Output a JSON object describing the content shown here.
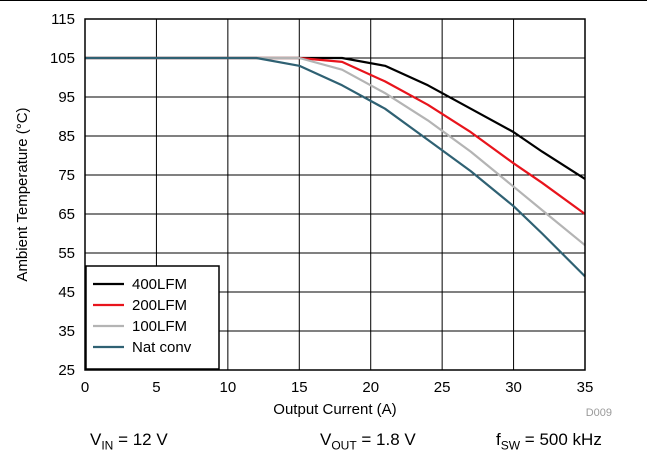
{
  "chart_data": {
    "type": "line",
    "xlabel": "Output Current (A)",
    "ylabel": "Ambient Temperature (°C)",
    "xlim": [
      0,
      35
    ],
    "ylim": [
      25,
      115
    ],
    "xticks": [
      "0",
      "5",
      "10",
      "15",
      "20",
      "25",
      "30",
      "35"
    ],
    "yticks": [
      "25",
      "35",
      "45",
      "55",
      "65",
      "75",
      "85",
      "95",
      "105",
      "115"
    ],
    "grid": true,
    "legend_position": "bottom-left",
    "figure_id": "D009",
    "series": [
      {
        "name": "400LFM",
        "color": "#000000",
        "x": [
          0,
          15,
          18,
          21,
          24,
          27,
          30,
          32,
          35
        ],
        "y": [
          105,
          105,
          105,
          103,
          98,
          92,
          86,
          81,
          74
        ]
      },
      {
        "name": "200LFM",
        "color": "#e8141c",
        "x": [
          0,
          15,
          18,
          21,
          24,
          27,
          30,
          32,
          35
        ],
        "y": [
          105,
          105,
          104,
          99,
          93,
          86,
          78,
          73,
          65
        ]
      },
      {
        "name": "100LFM",
        "color": "#b4b4b4",
        "x": [
          0,
          15,
          18,
          21,
          24,
          27,
          30,
          32,
          35
        ],
        "y": [
          105,
          105,
          102,
          96,
          89,
          81,
          72,
          66,
          57
        ]
      },
      {
        "name": "Nat conv",
        "color": "#2f6173",
        "x": [
          0,
          12,
          15,
          18,
          21,
          24,
          27,
          30,
          32,
          35
        ],
        "y": [
          105,
          105,
          103,
          98,
          92,
          84,
          76,
          67,
          60,
          49
        ]
      }
    ]
  },
  "conditions": {
    "vin": {
      "sym": "V",
      "sub": "IN",
      "rest": " = 12 V"
    },
    "vout": {
      "sym": "V",
      "sub": "OUT",
      "rest": " = 1.8 V"
    },
    "fsw": {
      "sym": "f",
      "sub": "SW",
      "rest": " = 500 kHz"
    }
  }
}
